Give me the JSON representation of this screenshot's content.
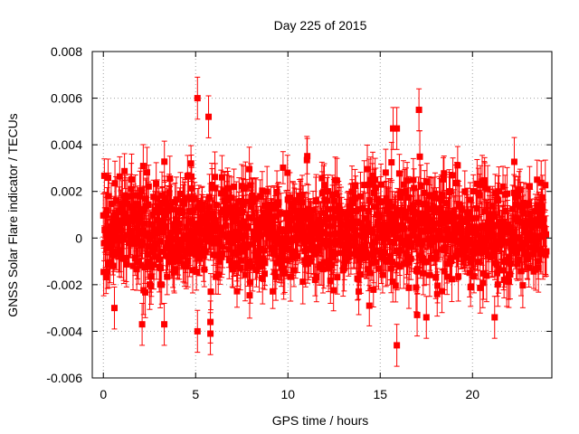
{
  "chart_data": {
    "type": "scatter",
    "title": "Day 225 of 2015",
    "xlabel": "GPS time / hours",
    "ylabel": "GNSS Solar Flare indicator / TECUs",
    "xlim": [
      -0.6,
      24.3
    ],
    "ylim": [
      -0.006,
      0.008
    ],
    "x_ticks": [
      0,
      5,
      10,
      15,
      20
    ],
    "x_tick_labels": [
      "0",
      "5",
      "10",
      "15",
      "20"
    ],
    "y_ticks": [
      -0.006,
      -0.004,
      -0.002,
      0,
      0.002,
      0.004,
      0.006,
      0.008
    ],
    "y_tick_labels": [
      "-0.006",
      "-0.004",
      "-0.002",
      "0",
      "0.002",
      "0.004",
      "0.006",
      "0.008"
    ],
    "grid": true,
    "marker": "square",
    "error_bars": true,
    "series_color": "#ff0000",
    "grid_color": "#a0a0a0",
    "series": [
      {
        "x_range": [
          0,
          24
        ],
        "typical_range": [
          -0.0025,
          0.0032
        ],
        "typical_error": 0.0009,
        "notable_points": [
          {
            "x": 5.1,
            "y": 0.006
          },
          {
            "x": 5.7,
            "y": 0.0052
          },
          {
            "x": 17.1,
            "y": 0.0055
          },
          {
            "x": 15.7,
            "y": 0.0047
          },
          {
            "x": 15.9,
            "y": 0.0047
          },
          {
            "x": 2.1,
            "y": -0.0037
          },
          {
            "x": 3.3,
            "y": -0.0037
          },
          {
            "x": 5.1,
            "y": -0.004
          },
          {
            "x": 5.8,
            "y": -0.0041
          },
          {
            "x": 5.8,
            "y": -0.0036
          },
          {
            "x": 15.9,
            "y": -0.0046
          },
          {
            "x": 17.0,
            "y": -0.0033
          },
          {
            "x": 17.5,
            "y": -0.0034
          },
          {
            "x": 21.2,
            "y": -0.0034
          },
          {
            "x": 0.6,
            "y": -0.003
          }
        ]
      }
    ]
  }
}
